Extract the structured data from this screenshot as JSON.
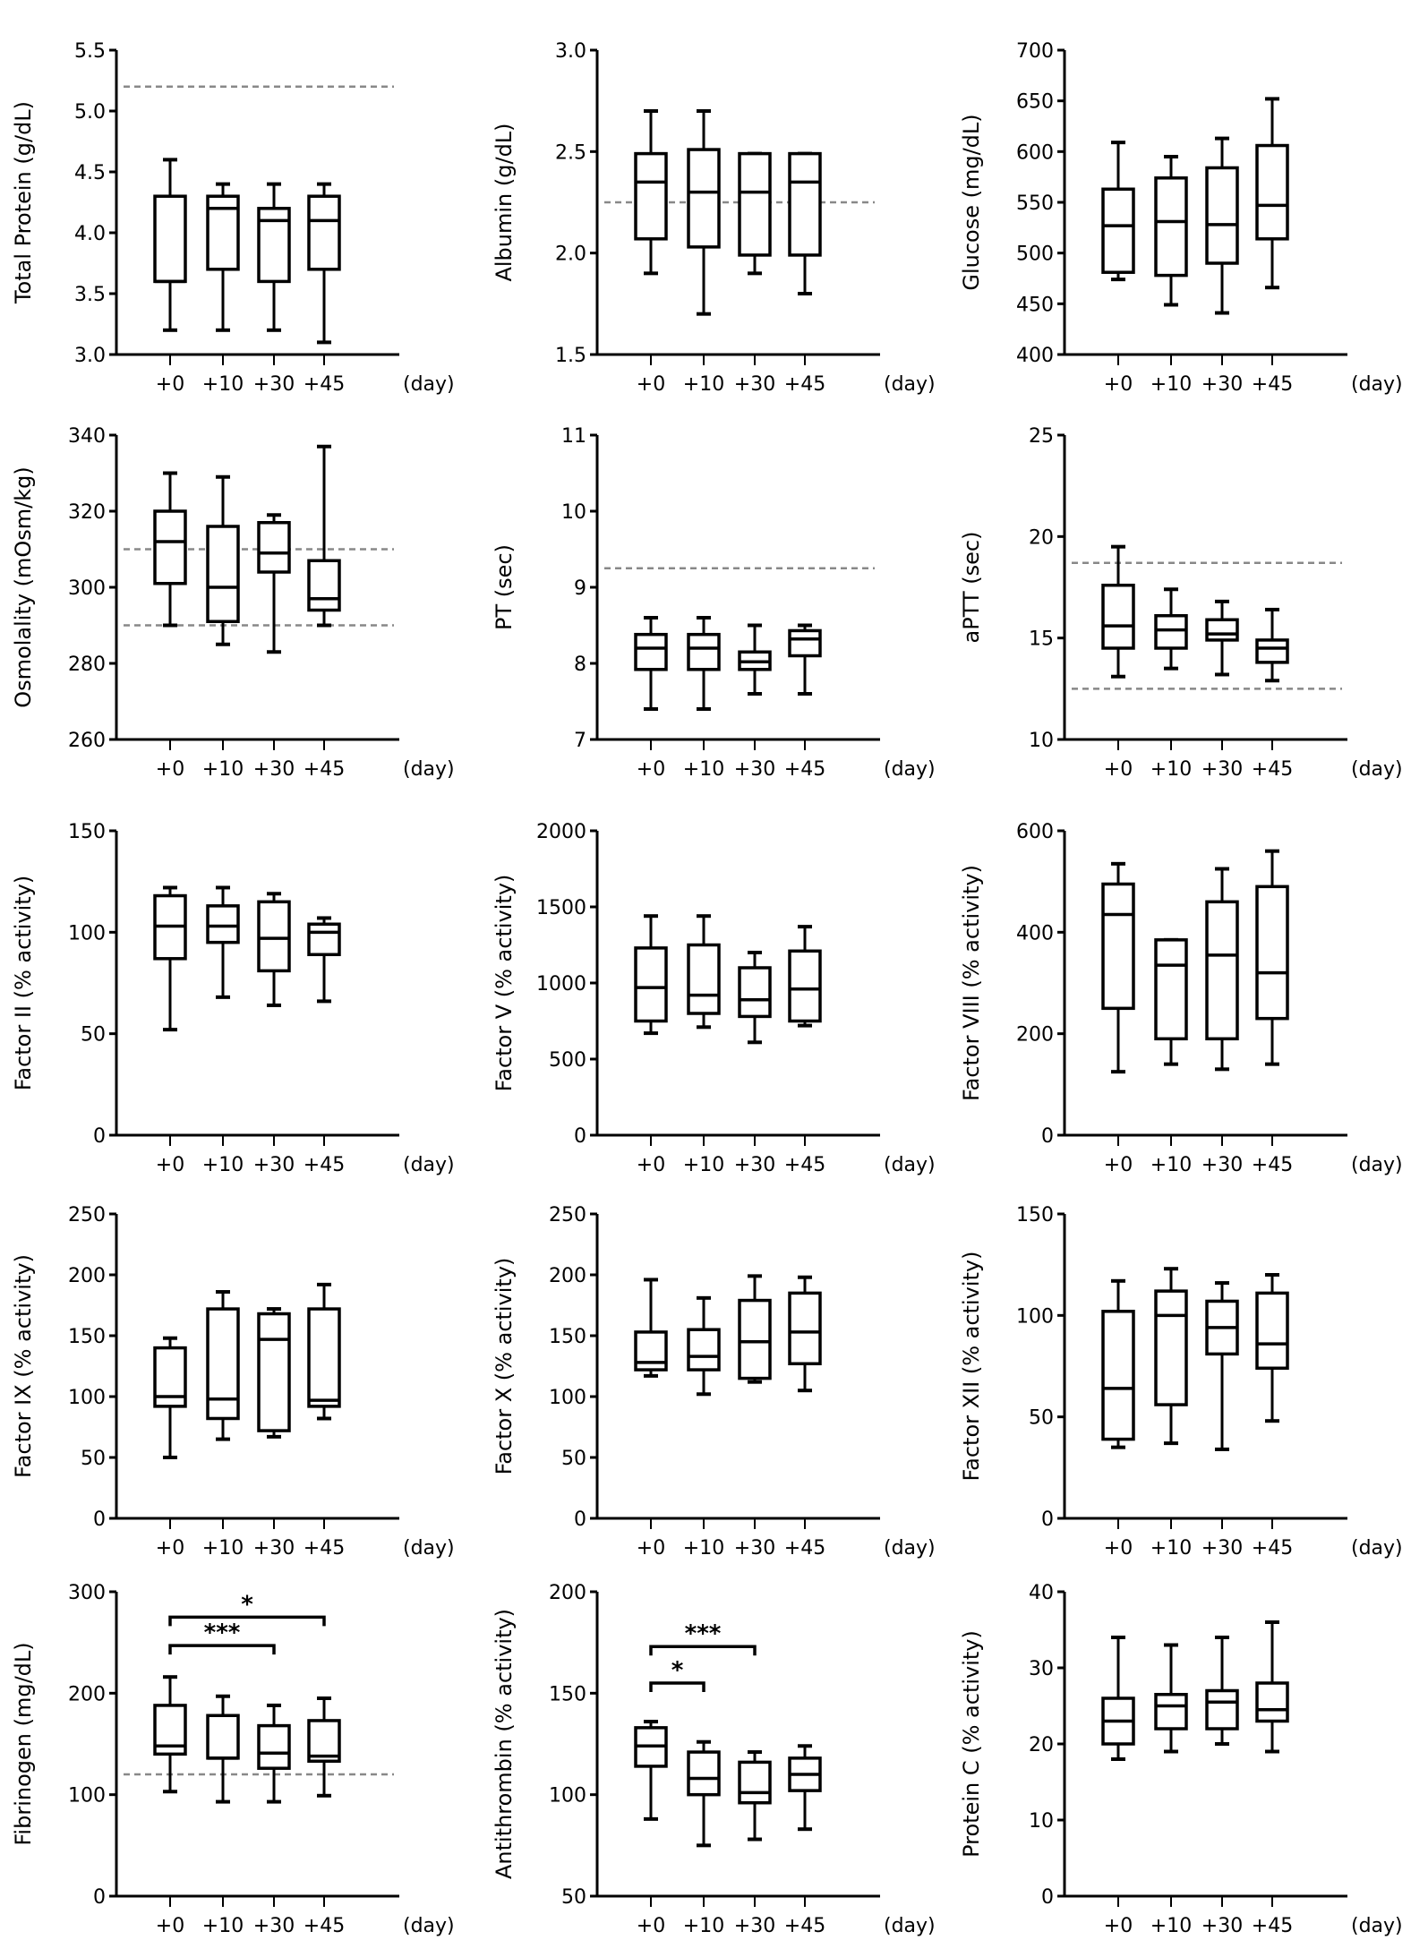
{
  "chart_data": [
    {
      "type": "box",
      "ylabel": "Total Protein (g/dL)",
      "ylim": [
        3.0,
        5.5
      ],
      "yticks": [
        "3.0",
        "3.5",
        "4.0",
        "4.5",
        "5.0",
        "5.5"
      ],
      "categories": [
        "+0",
        "+10",
        "+30",
        "+45"
      ],
      "xunit": "(day)",
      "reference_lines": [
        5.2
      ],
      "boxes": [
        {
          "min": 3.2,
          "q1": 3.6,
          "median": 3.6,
          "q3": 4.3,
          "max": 4.6
        },
        {
          "min": 3.2,
          "q1": 3.7,
          "median": 4.2,
          "q3": 4.3,
          "max": 4.4
        },
        {
          "min": 3.2,
          "q1": 3.6,
          "median": 4.1,
          "q3": 4.2,
          "max": 4.4
        },
        {
          "min": 3.1,
          "q1": 3.7,
          "median": 4.1,
          "q3": 4.3,
          "max": 4.4
        }
      ]
    },
    {
      "type": "box",
      "ylabel": "Albumin (g/dL)",
      "ylim": [
        1.5,
        3.0
      ],
      "yticks": [
        "1.5",
        "2.0",
        "2.5",
        "3.0"
      ],
      "categories": [
        "+0",
        "+10",
        "+30",
        "+45"
      ],
      "xunit": "(day)",
      "reference_lines": [
        2.25
      ],
      "boxes": [
        {
          "min": 1.9,
          "q1": 2.07,
          "median": 2.35,
          "q3": 2.49,
          "max": 2.7
        },
        {
          "min": 1.7,
          "q1": 2.03,
          "median": 2.3,
          "q3": 2.51,
          "max": 2.7
        },
        {
          "min": 1.9,
          "q1": 1.99,
          "median": 2.3,
          "q3": 2.49,
          "max": 2.49
        },
        {
          "min": 1.8,
          "q1": 1.99,
          "median": 2.35,
          "q3": 2.49,
          "max": 2.49
        }
      ]
    },
    {
      "type": "box",
      "ylabel": "Glucose (mg/dL)",
      "ylim": [
        400,
        700
      ],
      "yticks": [
        "400",
        "450",
        "500",
        "550",
        "600",
        "650",
        "700"
      ],
      "categories": [
        "+0",
        "+10",
        "+30",
        "+45"
      ],
      "xunit": "(day)",
      "reference_lines": [],
      "boxes": [
        {
          "min": 474,
          "q1": 481,
          "median": 527,
          "q3": 563,
          "max": 609
        },
        {
          "min": 449,
          "q1": 478,
          "median": 531,
          "q3": 574,
          "max": 595
        },
        {
          "min": 441,
          "q1": 490,
          "median": 528,
          "q3": 584,
          "max": 613
        },
        {
          "min": 466,
          "q1": 514,
          "median": 547,
          "q3": 606,
          "max": 652
        }
      ]
    },
    {
      "type": "box",
      "ylabel": "Osmolality (mOsm/kg)",
      "ylim": [
        260,
        340
      ],
      "yticks": [
        "260",
        "280",
        "300",
        "320",
        "340"
      ],
      "categories": [
        "+0",
        "+10",
        "+30",
        "+45"
      ],
      "xunit": "(day)",
      "reference_lines": [
        290,
        310
      ],
      "boxes": [
        {
          "min": 290,
          "q1": 301,
          "median": 312,
          "q3": 320,
          "max": 330
        },
        {
          "min": 285,
          "q1": 291,
          "median": 300,
          "q3": 316,
          "max": 329
        },
        {
          "min": 283,
          "q1": 304,
          "median": 309,
          "q3": 317,
          "max": 319
        },
        {
          "min": 290,
          "q1": 294,
          "median": 297,
          "q3": 307,
          "max": 337
        }
      ]
    },
    {
      "type": "box",
      "ylabel": "PT (sec)",
      "ylim": [
        7,
        11
      ],
      "yticks": [
        "7",
        "8",
        "9",
        "10",
        "11"
      ],
      "categories": [
        "+0",
        "+10",
        "+30",
        "+45"
      ],
      "xunit": "(day)",
      "reference_lines": [
        9.25
      ],
      "boxes": [
        {
          "min": 7.4,
          "q1": 7.92,
          "median": 8.2,
          "q3": 8.38,
          "max": 8.6
        },
        {
          "min": 7.4,
          "q1": 7.92,
          "median": 8.2,
          "q3": 8.38,
          "max": 8.6
        },
        {
          "min": 7.6,
          "q1": 7.92,
          "median": 8.02,
          "q3": 8.15,
          "max": 8.5
        },
        {
          "min": 7.6,
          "q1": 8.1,
          "median": 8.32,
          "q3": 8.43,
          "max": 8.5
        }
      ]
    },
    {
      "type": "box",
      "ylabel": "aPTT (sec)",
      "ylim": [
        10,
        25
      ],
      "yticks": [
        "10",
        "15",
        "20",
        "25"
      ],
      "categories": [
        "+0",
        "+10",
        "+30",
        "+45"
      ],
      "xunit": "(day)",
      "reference_lines": [
        12.5,
        18.7
      ],
      "boxes": [
        {
          "min": 13.1,
          "q1": 14.5,
          "median": 15.6,
          "q3": 17.6,
          "max": 19.5
        },
        {
          "min": 13.5,
          "q1": 14.5,
          "median": 15.4,
          "q3": 16.1,
          "max": 17.4
        },
        {
          "min": 13.2,
          "q1": 14.9,
          "median": 15.2,
          "q3": 15.9,
          "max": 16.8
        },
        {
          "min": 12.9,
          "q1": 13.8,
          "median": 14.5,
          "q3": 14.9,
          "max": 16.4
        }
      ]
    },
    {
      "type": "box",
      "ylabel": "Factor II (% activity)",
      "ylim": [
        0,
        150
      ],
      "yticks": [
        "0",
        "50",
        "100",
        "150"
      ],
      "categories": [
        "+0",
        "+10",
        "+30",
        "+45"
      ],
      "xunit": "(day)",
      "reference_lines": [],
      "boxes": [
        {
          "min": 52,
          "q1": 87,
          "median": 103,
          "q3": 118,
          "max": 122
        },
        {
          "min": 68,
          "q1": 95,
          "median": 103,
          "q3": 113,
          "max": 122
        },
        {
          "min": 64,
          "q1": 81,
          "median": 97,
          "q3": 115,
          "max": 119
        },
        {
          "min": 66,
          "q1": 89,
          "median": 100,
          "q3": 104,
          "max": 107
        }
      ]
    },
    {
      "type": "box",
      "ylabel": "Factor V (% activity)",
      "ylim": [
        0,
        2000
      ],
      "yticks": [
        "0",
        "500",
        "1000",
        "1500",
        "2000"
      ],
      "categories": [
        "+0",
        "+10",
        "+30",
        "+45"
      ],
      "xunit": "(day)",
      "reference_lines": [],
      "boxes": [
        {
          "min": 670,
          "q1": 750,
          "median": 970,
          "q3": 1230,
          "max": 1440
        },
        {
          "min": 710,
          "q1": 800,
          "median": 920,
          "q3": 1250,
          "max": 1440
        },
        {
          "min": 610,
          "q1": 780,
          "median": 890,
          "q3": 1100,
          "max": 1200
        },
        {
          "min": 720,
          "q1": 750,
          "median": 960,
          "q3": 1210,
          "max": 1370
        }
      ]
    },
    {
      "type": "box",
      "ylabel": "Factor VIII (% activity)",
      "ylim": [
        0,
        600
      ],
      "yticks": [
        "0",
        "200",
        "400",
        "600"
      ],
      "categories": [
        "+0",
        "+10",
        "+30",
        "+45"
      ],
      "xunit": "(day)",
      "reference_lines": [],
      "boxes": [
        {
          "min": 125,
          "q1": 250,
          "median": 435,
          "q3": 495,
          "max": 535
        },
        {
          "min": 140,
          "q1": 190,
          "median": 335,
          "q3": 385,
          "max": 385
        },
        {
          "min": 130,
          "q1": 190,
          "median": 355,
          "q3": 460,
          "max": 525
        },
        {
          "min": 140,
          "q1": 230,
          "median": 320,
          "q3": 490,
          "max": 560
        }
      ]
    },
    {
      "type": "box",
      "ylabel": "Factor IX (% activity)",
      "ylim": [
        0,
        250
      ],
      "yticks": [
        "0",
        "50",
        "100",
        "150",
        "200",
        "250"
      ],
      "categories": [
        "+0",
        "+10",
        "+30",
        "+45"
      ],
      "xunit": "(day)",
      "reference_lines": [],
      "boxes": [
        {
          "min": 50,
          "q1": 92,
          "median": 100,
          "q3": 140,
          "max": 148
        },
        {
          "min": 65,
          "q1": 82,
          "median": 98,
          "q3": 172,
          "max": 186
        },
        {
          "min": 67,
          "q1": 72,
          "median": 147,
          "q3": 168,
          "max": 172
        },
        {
          "min": 82,
          "q1": 92,
          "median": 97,
          "q3": 172,
          "max": 192
        }
      ]
    },
    {
      "type": "box",
      "ylabel": "Factor X (% activity)",
      "ylim": [
        0,
        250
      ],
      "yticks": [
        "0",
        "50",
        "100",
        "150",
        "200",
        "250"
      ],
      "categories": [
        "+0",
        "+10",
        "+30",
        "+45"
      ],
      "xunit": "(day)",
      "reference_lines": [],
      "boxes": [
        {
          "min": 117,
          "q1": 122,
          "median": 128,
          "q3": 153,
          "max": 196
        },
        {
          "min": 102,
          "q1": 122,
          "median": 133,
          "q3": 155,
          "max": 181
        },
        {
          "min": 112,
          "q1": 115,
          "median": 145,
          "q3": 179,
          "max": 199
        },
        {
          "min": 105,
          "q1": 127,
          "median": 153,
          "q3": 185,
          "max": 198
        }
      ]
    },
    {
      "type": "box",
      "ylabel": "Factor XII (% activity)",
      "ylim": [
        0,
        150
      ],
      "yticks": [
        "0",
        "50",
        "100",
        "150"
      ],
      "categories": [
        "+0",
        "+10",
        "+30",
        "+45"
      ],
      "xunit": "(day)",
      "reference_lines": [],
      "boxes": [
        {
          "min": 35,
          "q1": 39,
          "median": 64,
          "q3": 102,
          "max": 117
        },
        {
          "min": 37,
          "q1": 56,
          "median": 100,
          "q3": 112,
          "max": 123
        },
        {
          "min": 34,
          "q1": 81,
          "median": 94,
          "q3": 107,
          "max": 116
        },
        {
          "min": 48,
          "q1": 74,
          "median": 86,
          "q3": 111,
          "max": 120
        }
      ]
    },
    {
      "type": "box",
      "ylabel": "Fibrinogen (mg/dL)",
      "ylim": [
        0,
        300
      ],
      "yticks": [
        "0",
        "100",
        "200",
        "300"
      ],
      "categories": [
        "+0",
        "+10",
        "+30",
        "+45"
      ],
      "xunit": "(day)",
      "reference_lines": [
        120
      ],
      "boxes": [
        {
          "min": 103,
          "q1": 140,
          "median": 148,
          "q3": 188,
          "max": 216
        },
        {
          "min": 93,
          "q1": 136,
          "median": 136,
          "q3": 178,
          "max": 197
        },
        {
          "min": 93,
          "q1": 126,
          "median": 141,
          "q3": 168,
          "max": 188
        },
        {
          "min": 99,
          "q1": 133,
          "median": 138,
          "q3": 173,
          "max": 195
        }
      ],
      "significance": [
        {
          "from": 0,
          "to": 3,
          "label": "*",
          "level": 275
        },
        {
          "from": 0,
          "to": 2,
          "label": "***",
          "level": 247
        }
      ]
    },
    {
      "type": "box",
      "ylabel": "Antithrombin (% activity)",
      "ylim": [
        50,
        200
      ],
      "yticks": [
        "50",
        "100",
        "150",
        "200"
      ],
      "categories": [
        "+0",
        "+10",
        "+30",
        "+45"
      ],
      "xunit": "(day)",
      "reference_lines": [],
      "boxes": [
        {
          "min": 88,
          "q1": 114,
          "median": 124,
          "q3": 133,
          "max": 136
        },
        {
          "min": 75,
          "q1": 100,
          "median": 108,
          "q3": 121,
          "max": 126
        },
        {
          "min": 78,
          "q1": 96,
          "median": 101,
          "q3": 116,
          "max": 121
        },
        {
          "min": 83,
          "q1": 102,
          "median": 110,
          "q3": 118,
          "max": 124
        }
      ],
      "significance": [
        {
          "from": 0,
          "to": 1,
          "label": "*",
          "level": 155
        },
        {
          "from": 0,
          "to": 2,
          "label": "***",
          "level": 173
        }
      ]
    },
    {
      "type": "box",
      "ylabel": "Protein C (% activity)",
      "ylim": [
        0,
        40
      ],
      "yticks": [
        "0",
        "10",
        "20",
        "30",
        "40"
      ],
      "categories": [
        "+0",
        "+10",
        "+30",
        "+45"
      ],
      "xunit": "(day)",
      "reference_lines": [],
      "boxes": [
        {
          "min": 18,
          "q1": 20,
          "median": 23,
          "q3": 26,
          "max": 34
        },
        {
          "min": 19,
          "q1": 22,
          "median": 25,
          "q3": 26.5,
          "max": 33
        },
        {
          "min": 20,
          "q1": 22,
          "median": 25.5,
          "q3": 27,
          "max": 34
        },
        {
          "min": 19,
          "q1": 23,
          "median": 24.5,
          "q3": 28,
          "max": 36
        }
      ]
    }
  ],
  "colors": {
    "box": "#000000",
    "reference_line": "#888888"
  }
}
